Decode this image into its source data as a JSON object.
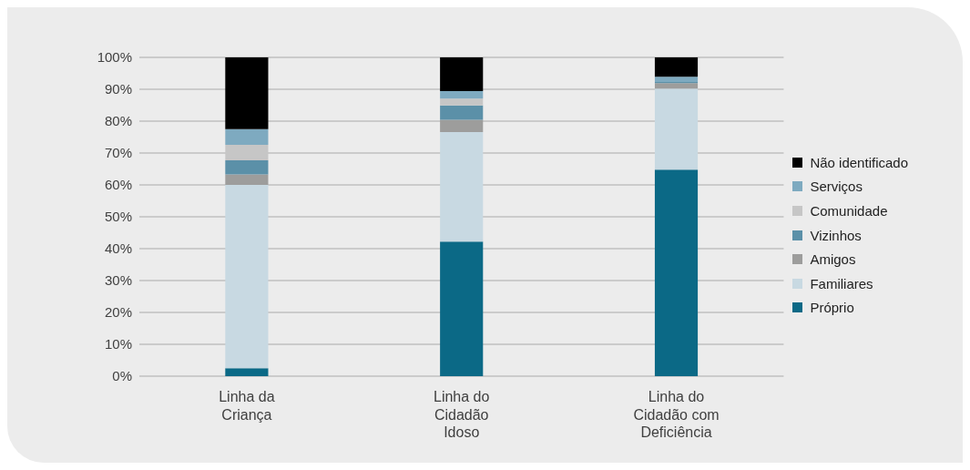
{
  "chart_data": {
    "type": "bar",
    "stacked": true,
    "categories": [
      "Linha da Criança",
      "Linha do Cidadão Idoso",
      "Linha do Cidadão com Deficiência"
    ],
    "series": [
      {
        "name": "Próprio",
        "color": "#0b6986",
        "values": [
          2.5,
          42.2,
          64.8
        ]
      },
      {
        "name": "Familiares",
        "color": "#c8d9e2",
        "values": [
          57.5,
          34.4,
          25.4
        ]
      },
      {
        "name": "Amigos",
        "color": "#9d9d9c",
        "values": [
          3.3,
          3.8,
          1.7
        ]
      },
      {
        "name": "Vizinhos",
        "color": "#5b90a8",
        "values": [
          4.4,
          4.5,
          0.4
        ]
      },
      {
        "name": "Comunidade",
        "color": "#c6c6c6",
        "values": [
          4.9,
          2.2,
          null
        ]
      },
      {
        "name": "Serviços",
        "color": "#7eaac0",
        "values": [
          4.9,
          2.3,
          1.6
        ]
      },
      {
        "name": "Não identificado",
        "color": "#000000",
        "values": [
          22.5,
          10.6,
          6.1
        ]
      }
    ],
    "ylim": [
      0,
      100
    ],
    "yticks": [
      {
        "value": 0,
        "label": "0%"
      },
      {
        "value": 10,
        "label": "10%"
      },
      {
        "value": 20,
        "label": "20%"
      },
      {
        "value": 30,
        "label": "30%"
      },
      {
        "value": 40,
        "label": "40%"
      },
      {
        "value": 50,
        "label": "50%"
      },
      {
        "value": 60,
        "label": "60%"
      },
      {
        "value": 70,
        "label": "70%"
      },
      {
        "value": 80,
        "label": "80%"
      },
      {
        "value": 90,
        "label": "90%"
      },
      {
        "value": 100,
        "label": "100%"
      }
    ],
    "grid": "y",
    "legend": "right"
  }
}
